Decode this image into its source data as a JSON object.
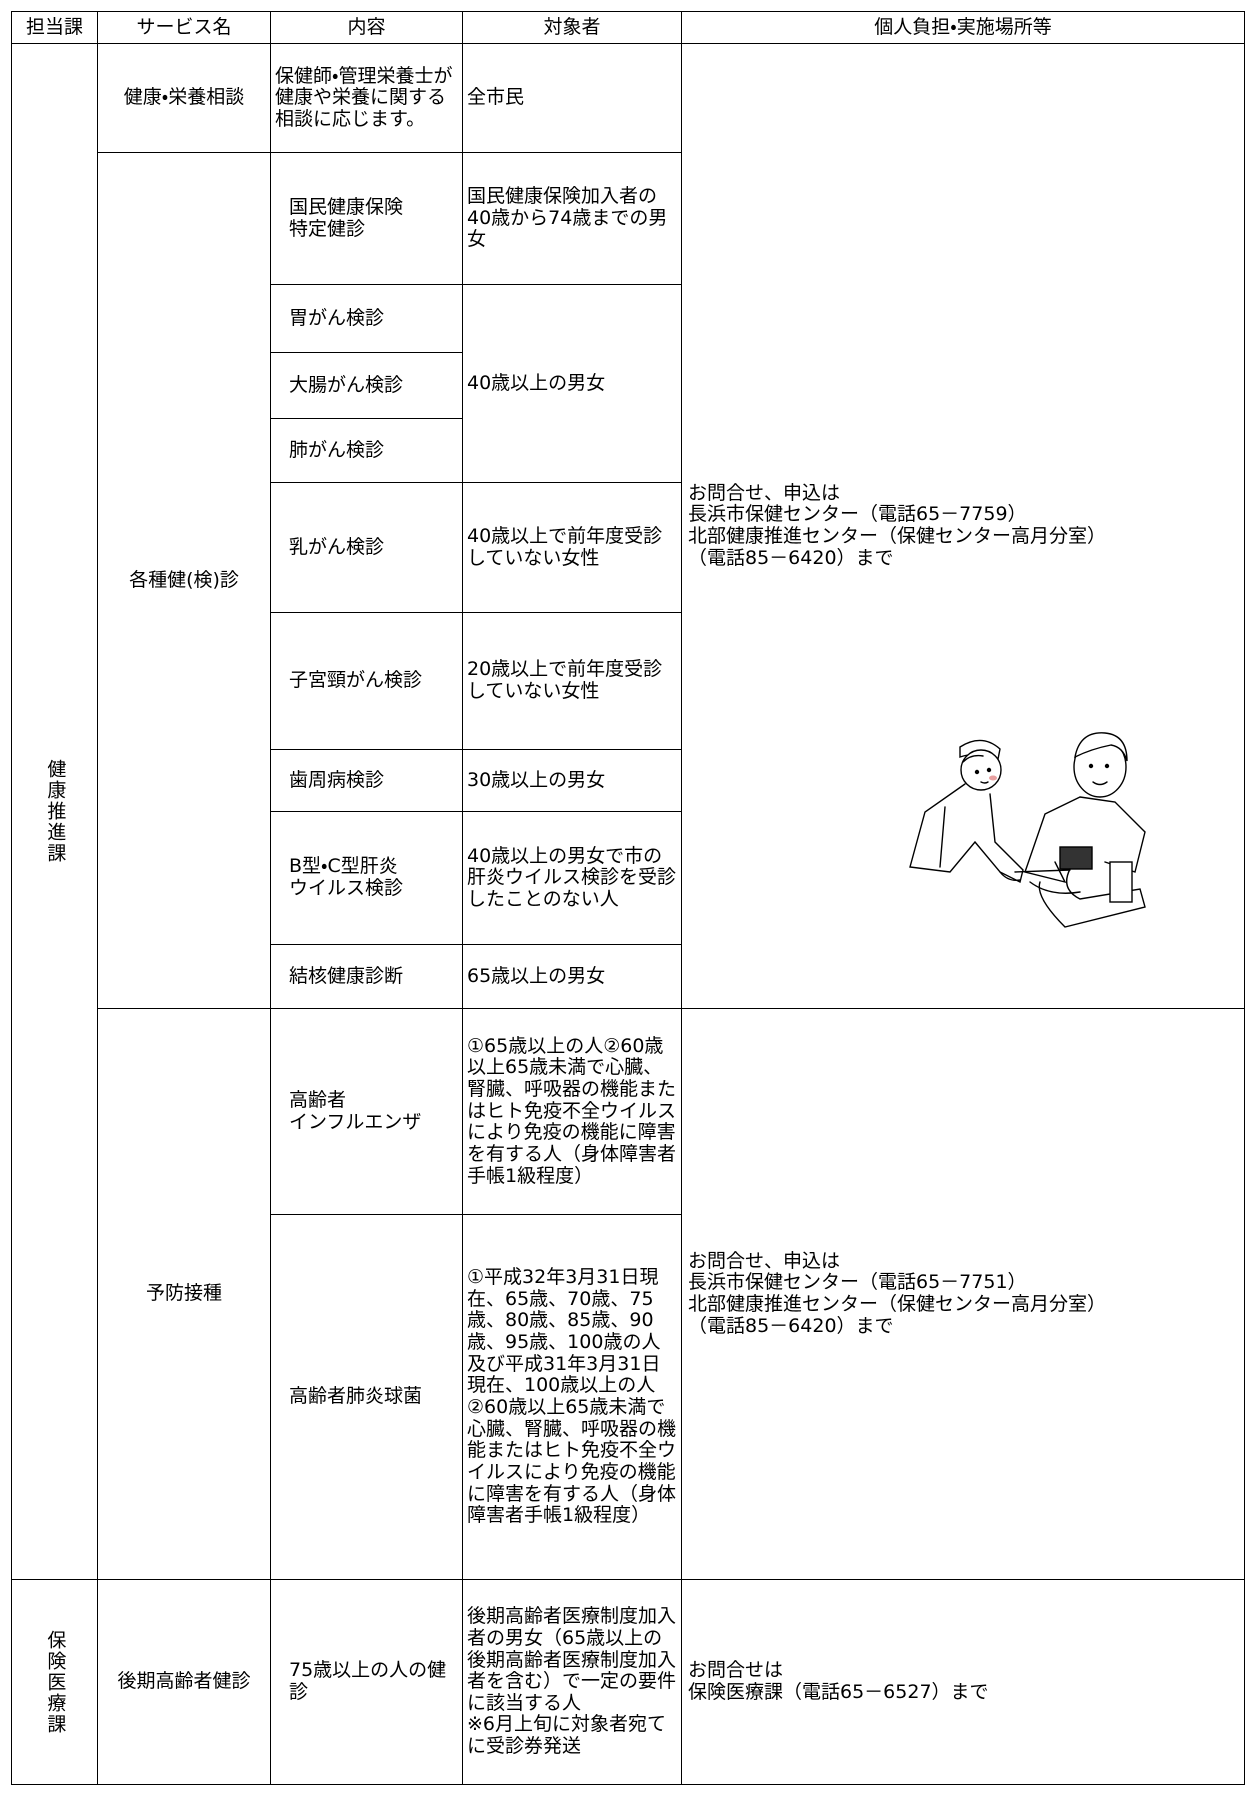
{
  "table": {
    "header": [
      "担当課",
      "サービス名",
      "内容",
      "対象者",
      "個人負担・実施場所等"
    ],
    "departments": [
      {
        "name": "健康推進課",
        "services": [
          {
            "name": "健康・栄養相談",
            "items": [
              {
                "content": "保健師・管理栄養士が健康や栄養に関する相談に応じます。",
                "target": "全市民"
              }
            ]
          },
          {
            "name": "各種健(検)診",
            "items": [
              {
                "content": "国民健康保険\n特定健診",
                "target": "国民健康保険加入者の40歳から74歳までの男女"
              },
              {
                "content": "胃がん検診",
                "target": "40歳以上の男女"
              },
              {
                "content": "大腸がん検診"
              },
              {
                "content": "肺がん検診"
              },
              {
                "content": "乳がん検診",
                "target": "40歳以上で前年度受診していない女性"
              },
              {
                "content": "子宮頸がん検診",
                "target": "20歳以上で前年度受診していない女性"
              },
              {
                "content": "歯周病検診",
                "target": "30歳以上の男女"
              },
              {
                "content": "B型・C型肝炎\nウイルス検診",
                "target": "40歳以上の男女で市の肝炎ウイルス検診を受診したことのない人"
              },
              {
                "content": "結核健康診断",
                "target": "65歳以上の男女"
              }
            ]
          },
          {
            "name": "予防接種",
            "items": [
              {
                "content": "高齢者\nインフルエンザ",
                "target": "①65歳以上の人②60歳以上65歳未満で心臓、腎臓、呼吸器の機能またはヒト免疫不全ウイルスにより免疫の機能に障害を有する人（身体障害者手帳1級程度）"
              },
              {
                "content": "高齢者肺炎球菌",
                "target": "①平成32年3月31日現在、65歳、70歳、75歳、80歳、85歳、90歳、95歳、100歳の人及び平成31年3月31日現在、100歳以上の人②60歳以上65歳未満で心臓、腎臓、呼吸器の機能またはヒト免疫不全ウイルスにより免疫の機能に障害を有する人（身体障害者手帳1級程度）"
              }
            ]
          }
        ],
        "contacts": [
          "お問合せ、申込は\n長浜市保健センター（電話65－7759）\n北部健康推進センター（保健センター高月分室）\n（電話85－6420）まで",
          "お問合せ、申込は\n長浜市保健センター（電話65－7751）\n北部健康推進センター（保健センター高月分室）\n（電話85－6420）まで"
        ]
      },
      {
        "name": "保険医療課",
        "services": [
          {
            "name": "後期高齢者健診",
            "items": [
              {
                "content": "75歳以上の人の健診",
                "target": "後期高齢者医療制度加入者の男女（65歳以上の後期高齢者医療制度加入者を含む）で一定の要件に該当する人\n※6月上旬に対象者宛てに受診券発送"
              }
            ]
          }
        ],
        "contacts": [
          "お問合せは\n保険医療課（電話65－6527）まで"
        ]
      }
    ]
  }
}
